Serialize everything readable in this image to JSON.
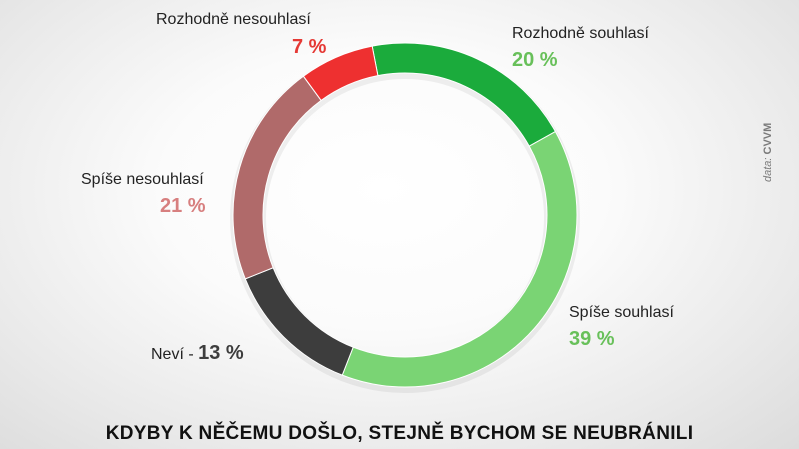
{
  "chart_data": {
    "type": "pie",
    "title": "KDYBY K NĚČEMU DOŠLO, STEJNĚ BYCHOM SE NEUBRÁNILI",
    "categories": [
      "Rozhodně souhlasí",
      "Spíše souhlasí",
      "Neví",
      "Spíše nesouhlasí",
      "Rozhodně nesouhlasí"
    ],
    "values": [
      20,
      39,
      13,
      21,
      7
    ],
    "value_labels": [
      "20 %",
      "39 %",
      "13 %",
      "21 %",
      "7 %"
    ],
    "colors": [
      "#1bab3c",
      "#7ad474",
      "#3d3d3d",
      "#b06a6a",
      "#ee3030"
    ],
    "label_colors": [
      "#68c05a",
      "#68c05a",
      "#3d3d3d",
      "#d77f7f",
      "#e53935"
    ],
    "donut": true,
    "legend": "none"
  },
  "neutral_separator": " - ",
  "source": {
    "prefix": "data:",
    "name": "CVVM"
  }
}
